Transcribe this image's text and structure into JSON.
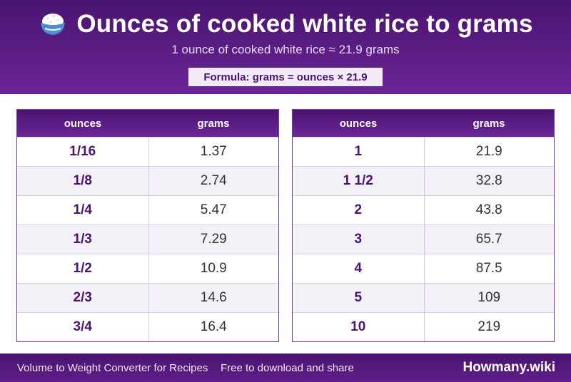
{
  "header": {
    "icon": "rice-bowl-icon",
    "title": "Ounces of cooked white rice to grams",
    "subtitle": "1 ounce of cooked white rice ≈ 21.9 grams",
    "formula": "Formula: grams = ounces × 21.9"
  },
  "tables": {
    "col_ounces": "ounces",
    "col_grams": "grams",
    "left": [
      {
        "ounces": "1/16",
        "grams": "1.37"
      },
      {
        "ounces": "1/8",
        "grams": "2.74"
      },
      {
        "ounces": "1/4",
        "grams": "5.47"
      },
      {
        "ounces": "1/3",
        "grams": "7.29"
      },
      {
        "ounces": "1/2",
        "grams": "10.9"
      },
      {
        "ounces": "2/3",
        "grams": "14.6"
      },
      {
        "ounces": "3/4",
        "grams": "16.4"
      }
    ],
    "right": [
      {
        "ounces": "1",
        "grams": "21.9"
      },
      {
        "ounces": "1 1/2",
        "grams": "32.8"
      },
      {
        "ounces": "2",
        "grams": "43.8"
      },
      {
        "ounces": "3",
        "grams": "65.7"
      },
      {
        "ounces": "4",
        "grams": "87.5"
      },
      {
        "ounces": "5",
        "grams": "109"
      },
      {
        "ounces": "10",
        "grams": "219"
      }
    ]
  },
  "footer": {
    "left_text": "Volume to Weight Converter for Recipes",
    "middle_text": "Free to download and share",
    "brand": "Howmany.wiki"
  },
  "colors": {
    "primary": "#4a1470",
    "accent": "#6a2596",
    "row_alt": "#f4f0f8"
  }
}
